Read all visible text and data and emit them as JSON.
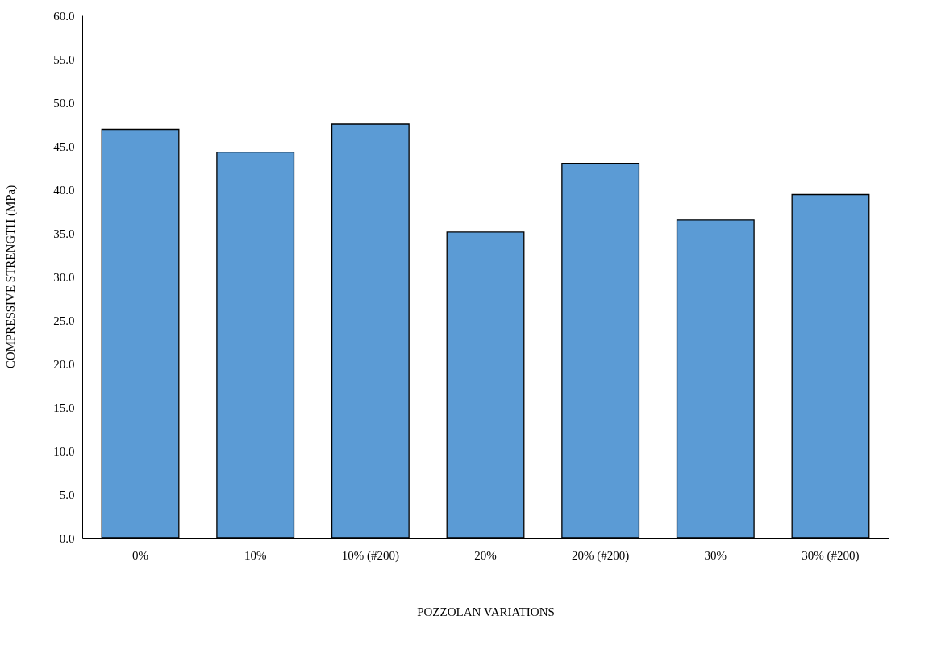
{
  "chart_data": {
    "type": "bar",
    "xlabel": "POZZOLAN VARIATIONS",
    "ylabel": "COMPRESSIVE STRENGTH (MPa)",
    "categories": [
      "0%",
      "10%",
      "10% (#200)",
      "20%",
      "20% (#200)",
      "30%",
      "30% (#200)"
    ],
    "values": [
      46.9,
      44.3,
      47.5,
      35.1,
      43.0,
      36.5,
      39.4
    ],
    "color": "#5b9bd5",
    "ylim": [
      0,
      60
    ],
    "yticks": [
      {
        "value": 0,
        "label": "0.0"
      },
      {
        "value": 5,
        "label": "5.0"
      },
      {
        "value": 10,
        "label": "10.0"
      },
      {
        "value": 15,
        "label": "15.0"
      },
      {
        "value": 20,
        "label": "20.0"
      },
      {
        "value": 25,
        "label": "25.0"
      },
      {
        "value": 30,
        "label": "30.0"
      },
      {
        "value": 35,
        "label": "35.0"
      },
      {
        "value": 40,
        "label": "40.0"
      },
      {
        "value": 45,
        "label": "45.0"
      },
      {
        "value": 50,
        "label": "50.0"
      },
      {
        "value": 55,
        "label": "55.0"
      },
      {
        "value": 60,
        "label": "60.0"
      }
    ],
    "grid": false
  }
}
